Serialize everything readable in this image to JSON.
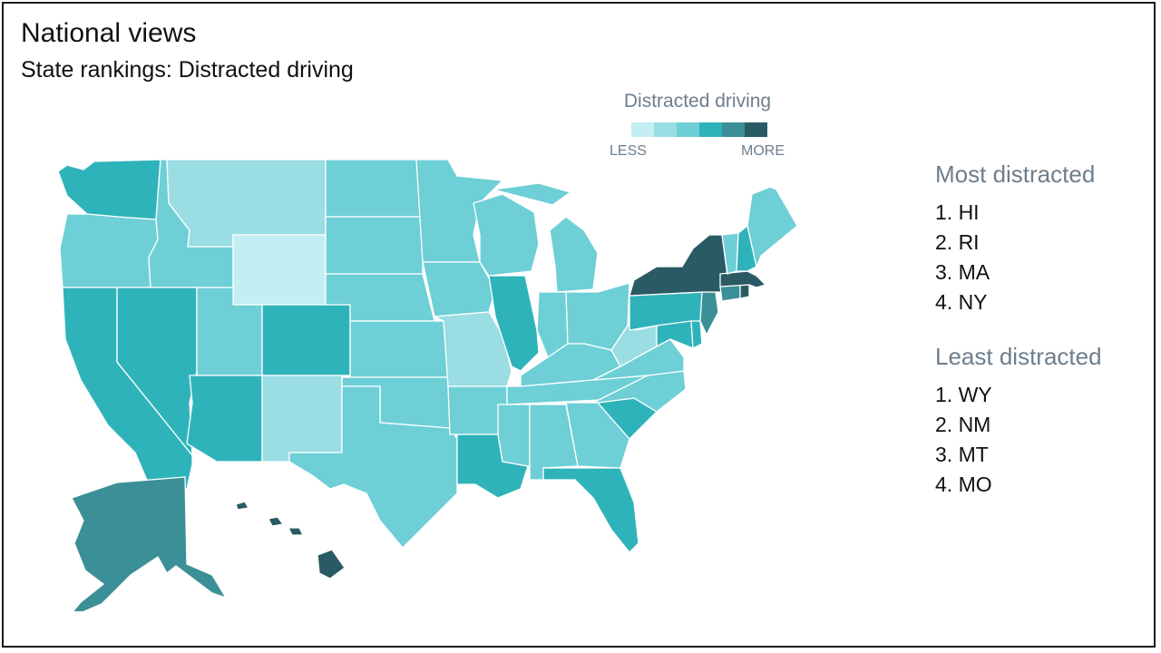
{
  "header": {
    "title": "National views",
    "subtitle": "State rankings: Distracted driving"
  },
  "legend": {
    "title": "Distracted driving",
    "low_label": "LESS",
    "high_label": "MORE",
    "scale_colors": [
      "#c4eff2",
      "#9adde3",
      "#6ecfd6",
      "#2fb3ba",
      "#3b8f96",
      "#2a5a64"
    ]
  },
  "map": {
    "name": "US states choropleth",
    "states": [
      {
        "id": "WA",
        "level": 4
      },
      {
        "id": "OR",
        "level": 3
      },
      {
        "id": "CA",
        "level": 4
      },
      {
        "id": "ID",
        "level": 3
      },
      {
        "id": "NV",
        "level": 4
      },
      {
        "id": "MT",
        "level": 2
      },
      {
        "id": "WY",
        "level": 1
      },
      {
        "id": "UT",
        "level": 3
      },
      {
        "id": "AZ",
        "level": 4
      },
      {
        "id": "CO",
        "level": 4
      },
      {
        "id": "NM",
        "level": 2
      },
      {
        "id": "ND",
        "level": 3
      },
      {
        "id": "SD",
        "level": 3
      },
      {
        "id": "NE",
        "level": 3
      },
      {
        "id": "KS",
        "level": 3
      },
      {
        "id": "OK",
        "level": 3
      },
      {
        "id": "TX",
        "level": 3
      },
      {
        "id": "MN",
        "level": 3
      },
      {
        "id": "IA",
        "level": 3
      },
      {
        "id": "MO",
        "level": 2
      },
      {
        "id": "AR",
        "level": 3
      },
      {
        "id": "LA",
        "level": 4
      },
      {
        "id": "WI",
        "level": 3
      },
      {
        "id": "IL",
        "level": 4
      },
      {
        "id": "MI",
        "level": 3
      },
      {
        "id": "IN",
        "level": 3
      },
      {
        "id": "OH",
        "level": 3
      },
      {
        "id": "KY",
        "level": 3
      },
      {
        "id": "TN",
        "level": 3
      },
      {
        "id": "MS",
        "level": 3
      },
      {
        "id": "AL",
        "level": 3
      },
      {
        "id": "GA",
        "level": 3
      },
      {
        "id": "FL",
        "level": 4
      },
      {
        "id": "SC",
        "level": 4
      },
      {
        "id": "NC",
        "level": 3
      },
      {
        "id": "VA",
        "level": 3
      },
      {
        "id": "WV",
        "level": 2
      },
      {
        "id": "PA",
        "level": 4
      },
      {
        "id": "NY",
        "level": 6
      },
      {
        "id": "VT",
        "level": 3
      },
      {
        "id": "NH",
        "level": 4
      },
      {
        "id": "ME",
        "level": 3
      },
      {
        "id": "MA",
        "level": 6
      },
      {
        "id": "RI",
        "level": 6
      },
      {
        "id": "CT",
        "level": 5
      },
      {
        "id": "NJ",
        "level": 5
      },
      {
        "id": "DE",
        "level": 4
      },
      {
        "id": "MD",
        "level": 4
      },
      {
        "id": "AK",
        "level": 5
      },
      {
        "id": "HI",
        "level": 6
      }
    ]
  },
  "most_distracted": {
    "heading": "Most distracted",
    "items": [
      "1. HI",
      "2. RI",
      "3. MA",
      "4. NY"
    ]
  },
  "least_distracted": {
    "heading": "Least distracted",
    "items": [
      "1. WY",
      "2. NM",
      "3. MT",
      "4. MO"
    ]
  }
}
